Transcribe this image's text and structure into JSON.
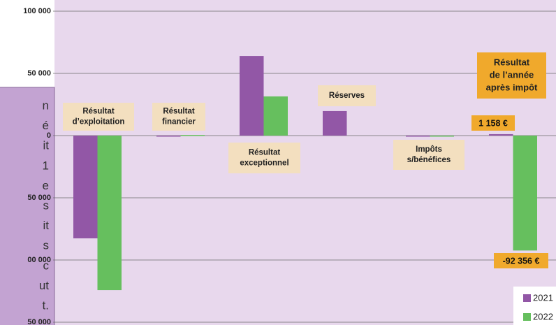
{
  "chart_data": {
    "type": "bar",
    "categories": [
      [
        "Résultat",
        "d’exploitation"
      ],
      [
        "Résultat",
        "financier"
      ],
      [
        "Résultat",
        "exceptionnel"
      ],
      [
        "Réserves"
      ],
      [
        "Impôts",
        "s/bénéfices"
      ],
      [
        "Résultat",
        "de l’année",
        "après impôt"
      ]
    ],
    "series": [
      {
        "name": "2021",
        "color": "#9257a6",
        "values": [
          -82600,
          0,
          64000,
          19700,
          0,
          1158
        ],
        "value_labels": [
          null,
          null,
          null,
          null,
          null,
          "1 158 €"
        ]
      },
      {
        "name": "2022",
        "color": "#66bf5e",
        "values": [
          -124200,
          500,
          31500,
          null,
          0,
          -92356
        ],
        "value_labels": [
          null,
          null,
          null,
          null,
          null,
          "-92 356 €"
        ]
      }
    ],
    "ylim": [
      -150000,
      100000
    ],
    "yticks": [
      {
        "value": -150000,
        "label": "50 000"
      },
      {
        "value": -100000,
        "label": "00 000"
      },
      {
        "value": -50000,
        "label": "50 000"
      },
      0,
      {
        "value": 50000,
        "label": "50 000"
      },
      {
        "value": 100000,
        "label": "100 000"
      }
    ],
    "grid": true,
    "side_note": [
      "n",
      "é",
      "it",
      "1",
      "e",
      "s",
      "it",
      "s",
      "c",
      "ut",
      "t."
    ]
  }
}
